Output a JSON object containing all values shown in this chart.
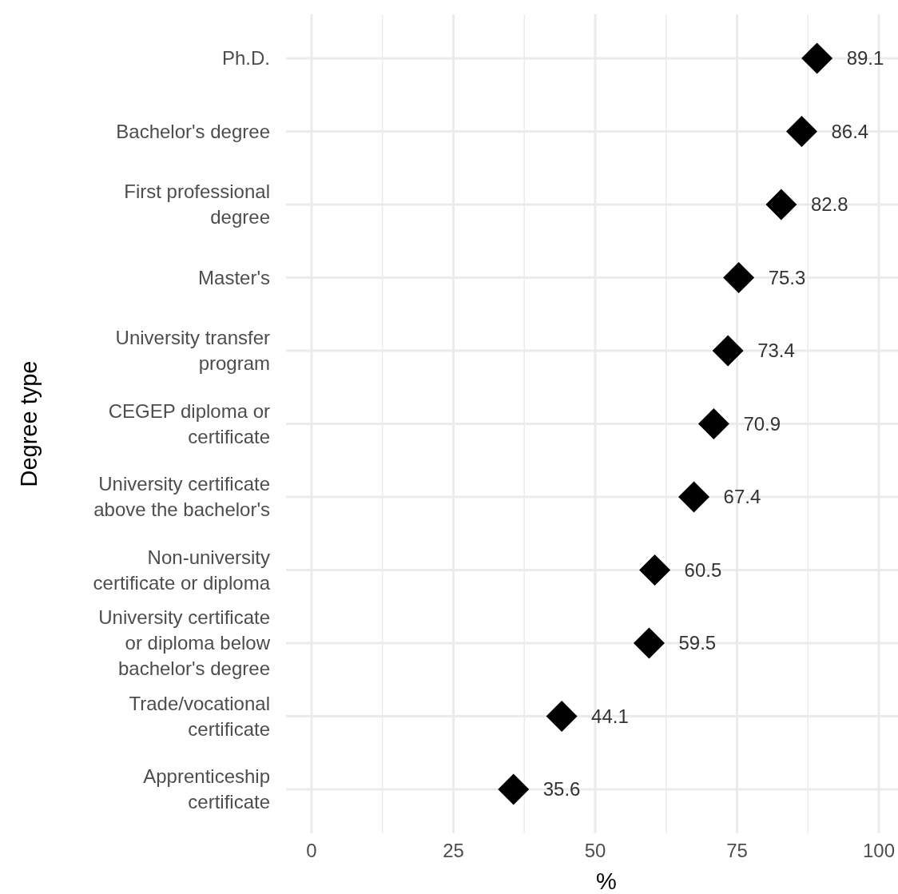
{
  "chart_data": {
    "type": "scatter",
    "orientation": "horizontal",
    "ylabel": "Degree type",
    "xlabel": "%",
    "categories": [
      "Ph.D.",
      "Bachelor's degree",
      "First professional degree",
      "Master's",
      "University transfer program",
      "CEGEP diploma or certificate",
      "University certificate above the bachelor's",
      "Non-university certificate or diploma",
      "University certificate or diploma below bachelor's degree",
      "Trade/vocational certificate",
      "Apprenticeship certificate"
    ],
    "values": [
      89.1,
      86.4,
      82.8,
      75.3,
      73.4,
      70.9,
      67.4,
      60.5,
      59.5,
      44.1,
      35.6
    ],
    "color": "#000000",
    "marker": "diamond",
    "data_labels": true,
    "grid": true,
    "xlim": [
      -4.5,
      104.5
    ],
    "xticks": [
      0,
      {
        "value": 12.5,
        "label": null
      },
      25,
      {
        "value": 37.5,
        "label": null
      },
      50,
      {
        "value": 62.5,
        "label": null
      },
      75,
      {
        "value": 87.5,
        "label": null
      },
      100
    ]
  }
}
